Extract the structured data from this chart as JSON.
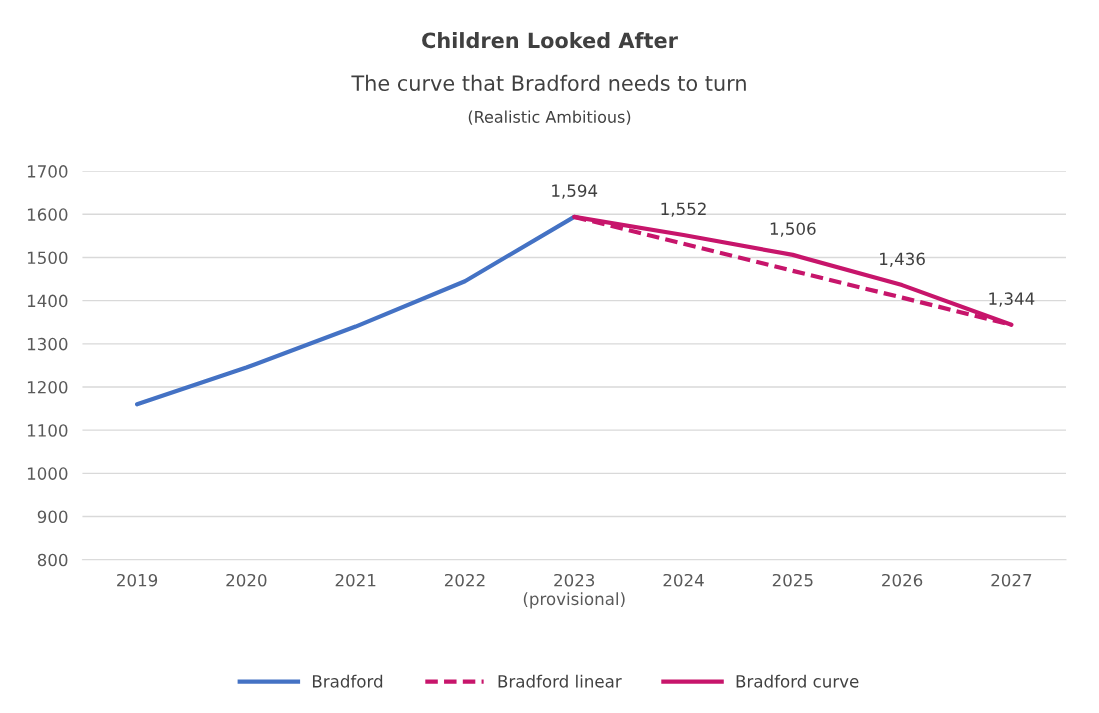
{
  "chart_data": {
    "type": "line",
    "title": "Children Looked After",
    "subtitle": "The curve that Bradford needs to turn\n(Realistic Ambitious)",
    "categories": [
      "2019",
      "2020",
      "2021",
      "2022",
      "2023\n(provisional)",
      "2024",
      "2025",
      "2026",
      "2027"
    ],
    "series": [
      {
        "name": "Bradford",
        "color": "#4472c4",
        "values": [
          1160,
          1245,
          1340,
          1445,
          1594,
          null,
          null,
          null,
          null
        ],
        "line_style": "solid"
      },
      {
        "name": "Bradford linear",
        "color": "#c7156b",
        "values": [
          null,
          null,
          null,
          null,
          1594,
          1532,
          1469,
          1407,
          1344
        ],
        "line_style": "dashed"
      },
      {
        "name": "Bradford curve",
        "color": "#c7156b",
        "values": [
          null,
          null,
          null,
          null,
          1594,
          1552,
          1506,
          1436,
          1344
        ],
        "line_style": "solid",
        "value_labels": [
          null,
          null,
          null,
          null,
          "1,594",
          "1,552",
          "1,506",
          "1,436",
          "1,344"
        ]
      }
    ],
    "ylim": [
      800,
      1700
    ],
    "yticks": [
      800,
      900,
      1000,
      1100,
      1200,
      1300,
      1400,
      1500,
      1600,
      1700
    ],
    "grid": "y",
    "legend": "bottom",
    "marker": "none"
  }
}
